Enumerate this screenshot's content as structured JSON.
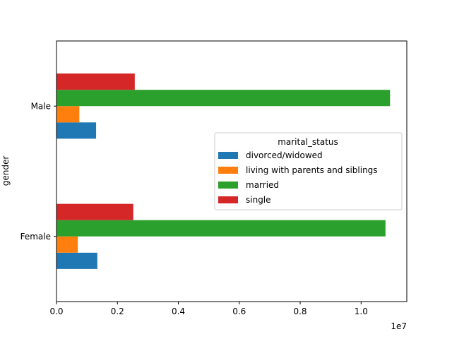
{
  "chart_data": {
    "type": "bar",
    "orientation": "horizontal",
    "categories": [
      "Female",
      "Male"
    ],
    "series": [
      {
        "name": "divorced/widowed",
        "color": "#1f77b4",
        "values": [
          1340000,
          1300000
        ]
      },
      {
        "name": "living with parents and siblings",
        "color": "#ff7f0e",
        "values": [
          700000,
          750000
        ]
      },
      {
        "name": "married",
        "color": "#2ca02c",
        "values": [
          10800000,
          10950000
        ]
      },
      {
        "name": "single",
        "color": "#d62728",
        "values": [
          2520000,
          2570000
        ]
      }
    ],
    "title": "",
    "xlabel": "",
    "ylabel": "gender",
    "xlim": [
      0,
      11500000
    ],
    "xticks": [
      0,
      2000000,
      4000000,
      6000000,
      8000000,
      10000000
    ],
    "xtick_labels": [
      "0.0",
      "0.2",
      "0.4",
      "0.6",
      "0.8",
      "1.0"
    ],
    "x_offset_text": "1e7",
    "legend_title": "marital_status",
    "legend_position": "center-right",
    "grid": false
  }
}
